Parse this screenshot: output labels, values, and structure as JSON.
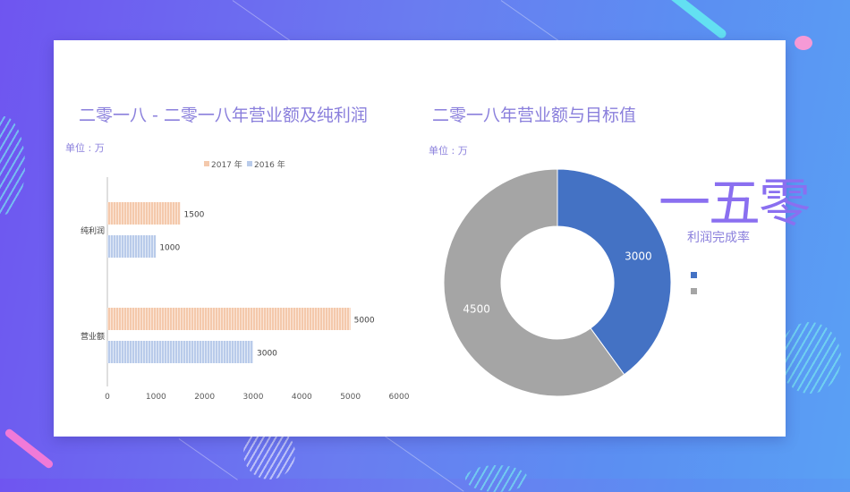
{
  "slide": {
    "left_title": "二零一八 - 二零一八年营业额及纯利润",
    "left_unit": "单位 : 万",
    "right_title": "二零一八年营业额与目标值",
    "right_unit": "单位 : 万",
    "big_figure": "一五零",
    "big_figure_label": "利润完成率"
  },
  "colors": {
    "series_2017": "#f4c9ac",
    "series_2016": "#b9cbea",
    "donut_blue": "#4472c4",
    "donut_gray": "#a5a5a5",
    "accent": "#8a7fdc"
  },
  "chart_data": [
    {
      "type": "bar",
      "orientation": "horizontal",
      "categories": [
        "纯利润",
        "营业额"
      ],
      "series": [
        {
          "name": "2017 年",
          "values": [
            1500,
            5000
          ]
        },
        {
          "name": "2016 年",
          "values": [
            1000,
            3000
          ]
        }
      ],
      "xlim": [
        0,
        6000
      ],
      "xticks": [
        "0",
        "1000",
        "2000",
        "3000",
        "4000",
        "5000",
        "6000"
      ],
      "legend": "top"
    },
    {
      "type": "pie",
      "variant": "donut",
      "slices": [
        {
          "label": "3000",
          "value": 3000
        },
        {
          "label": "4500",
          "value": 4500
        }
      ],
      "legend": "right"
    }
  ]
}
